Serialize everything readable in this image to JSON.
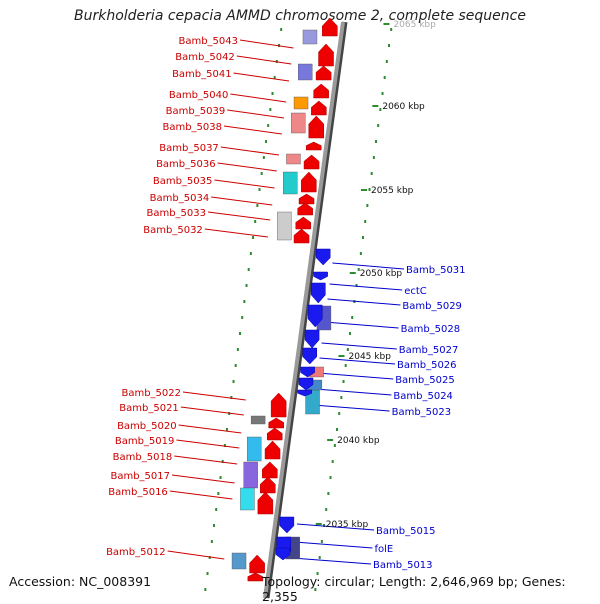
{
  "title": "Burkholderia cepacia AMMD chromosome 2, complete sequence",
  "accession_text": "Accession: NC_008391",
  "summary_text": "Topology: circular; Length: 2,646,969 bp; Genes: 2,355",
  "colors": {
    "forward_label": "#cc0000",
    "reverse_label": "#0000cc",
    "backbone": "#888888",
    "tick": "#2e8b2e"
  },
  "scale_labels": [
    "2065 kbp",
    "2060 kbp",
    "2055 kbp",
    "2050 kbp",
    "2045 kbp",
    "2040 kbp",
    "2035 kbp"
  ],
  "forward_genes": [
    "Bamb_5043",
    "Bamb_5042",
    "Bamb_5041",
    "Bamb_5040",
    "Bamb_5039",
    "Bamb_5038",
    "Bamb_5037",
    "Bamb_5036",
    "Bamb_5035",
    "Bamb_5034",
    "Bamb_5033",
    "Bamb_5032",
    "Bamb_5022",
    "Bamb_5021",
    "Bamb_5020",
    "Bamb_5019",
    "Bamb_5018",
    "Bamb_5017",
    "Bamb_5016",
    "Bamb_5012"
  ],
  "reverse_genes": [
    "Bamb_5031",
    "ectC",
    "Bamb_5029",
    "Bamb_5028",
    "Bamb_5027",
    "Bamb_5026",
    "Bamb_5025",
    "Bamb_5024",
    "Bamb_5023",
    "Bamb_5015",
    "folE",
    "Bamb_5013"
  ]
}
